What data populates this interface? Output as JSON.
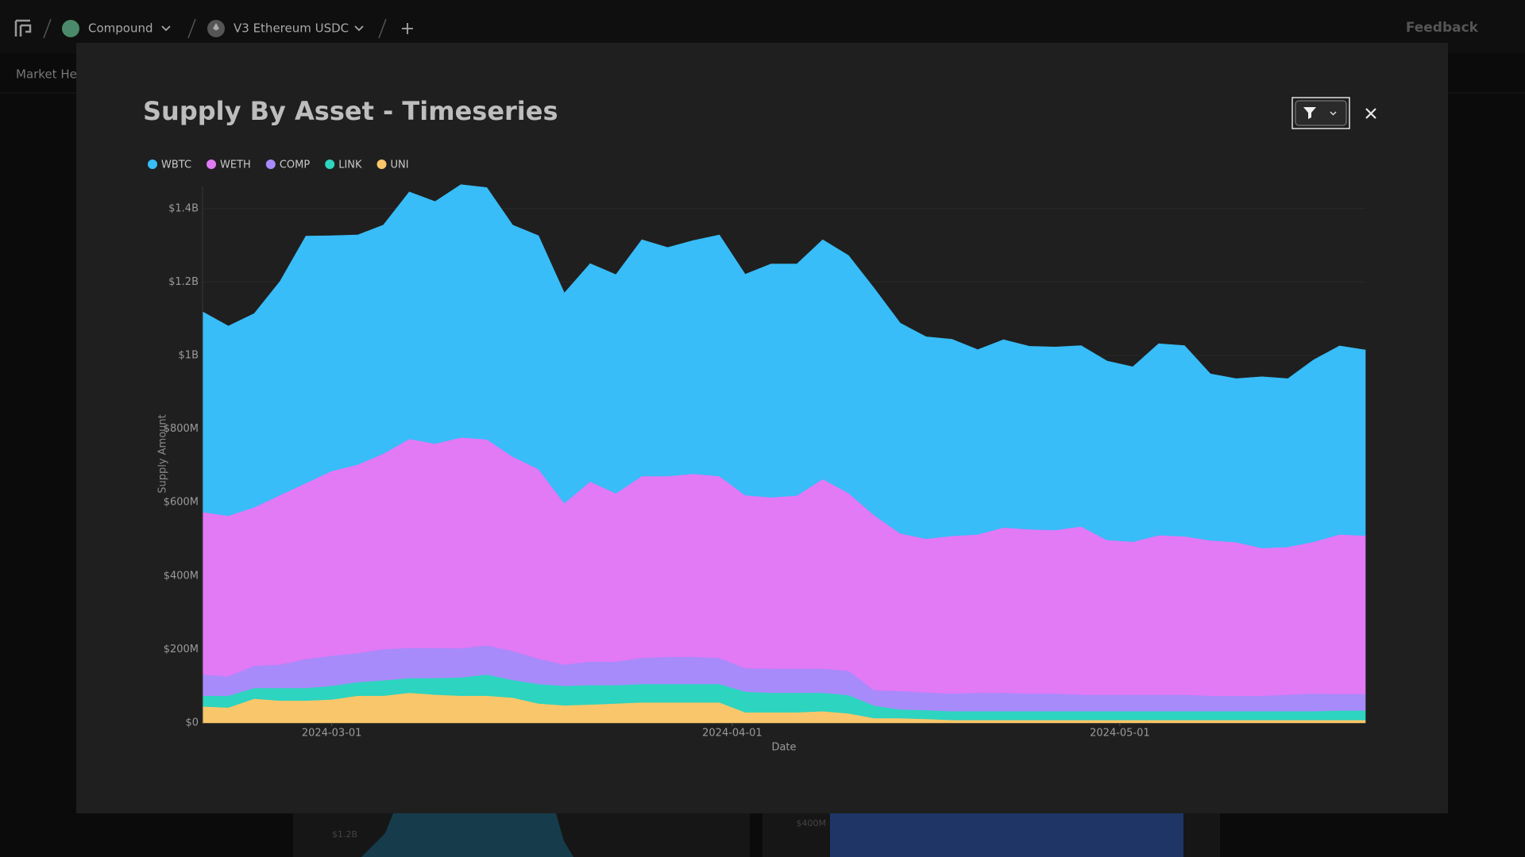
{
  "nav": {
    "crumbs": [
      "Compound",
      "V3 Ethereum USDC"
    ],
    "feedback": "Feedback"
  },
  "tab": "Market Hea",
  "background_labels": [
    "$1.2B",
    "$400M"
  ],
  "chart_data": {
    "type": "area",
    "stacked": true,
    "title": "Supply By Asset - Timeseries",
    "x_label": "Date",
    "y_label": "Supply Amount",
    "x": [
      "2024-02-20",
      "2024-02-22",
      "2024-02-24",
      "2024-02-26",
      "2024-02-28",
      "2024-03-01",
      "2024-03-03",
      "2024-03-05",
      "2024-03-07",
      "2024-03-09",
      "2024-03-11",
      "2024-03-13",
      "2024-03-15",
      "2024-03-17",
      "2024-03-19",
      "2024-03-21",
      "2024-03-23",
      "2024-03-25",
      "2024-03-27",
      "2024-03-29",
      "2024-03-31",
      "2024-04-02",
      "2024-04-04",
      "2024-04-06",
      "2024-04-08",
      "2024-04-10",
      "2024-04-12",
      "2024-04-14",
      "2024-04-16",
      "2024-04-18",
      "2024-04-20",
      "2024-04-22",
      "2024-04-24",
      "2024-04-26",
      "2024-04-28",
      "2024-04-30",
      "2024-05-02",
      "2024-05-04",
      "2024-05-06",
      "2024-05-08",
      "2024-05-10",
      "2024-05-12",
      "2024-05-14",
      "2024-05-16",
      "2024-05-18",
      "2024-05-20"
    ],
    "xlim": [
      "2024-02-20",
      "2024-05-20"
    ],
    "xticks": [
      "2024-03-01",
      "2024-04-01",
      "2024-05-01"
    ],
    "ylim": [
      0,
      1460000000
    ],
    "yticks": [
      {
        "value": 0,
        "label": "$0"
      },
      {
        "value": 200000000,
        "label": "$200M"
      },
      {
        "value": 400000000,
        "label": "$400M"
      },
      {
        "value": 600000000,
        "label": "$600M"
      },
      {
        "value": 800000000,
        "label": "$800M"
      },
      {
        "value": 1000000000,
        "label": "$1B"
      },
      {
        "value": 1200000000,
        "label": "$1.2B"
      },
      {
        "value": 1400000000,
        "label": "$1.4B"
      }
    ],
    "grid": true,
    "legend": "top-left",
    "series": [
      {
        "name": "WBTC",
        "color": "#38bdf8",
        "values": [
          545000000,
          516000000,
          527000000,
          582000000,
          672000000,
          640000000,
          625000000,
          622000000,
          672000000,
          659000000,
          688000000,
          685000000,
          630000000,
          635000000,
          572000000,
          593000000,
          595000000,
          643000000,
          622000000,
          635000000,
          656000000,
          601000000,
          635000000,
          630000000,
          651000000,
          646000000,
          617000000,
          572000000,
          550000000,
          535000000,
          503000000,
          511000000,
          498000000,
          498000000,
          492000000,
          487000000,
          476000000,
          521000000,
          519000000,
          453000000,
          445000000,
          466000000,
          458000000,
          495000000,
          513000000,
          505000000
        ]
      },
      {
        "name": "WETH",
        "color": "#e279f5",
        "values": [
          442000000,
          437000000,
          431000000,
          461000000,
          479000000,
          503000000,
          513000000,
          532000000,
          569000000,
          556000000,
          574000000,
          561000000,
          529000000,
          516000000,
          439000000,
          490000000,
          458000000,
          495000000,
          492000000,
          498000000,
          495000000,
          471000000,
          466000000,
          471000000,
          516000000,
          484000000,
          476000000,
          429000000,
          418000000,
          429000000,
          431000000,
          450000000,
          447000000,
          445000000,
          458000000,
          421000000,
          416000000,
          434000000,
          431000000,
          423000000,
          418000000,
          402000000,
          402000000,
          413000000,
          434000000,
          431000000
        ]
      },
      {
        "name": "COMP",
        "color": "#a78bfa",
        "values": [
          58000000,
          53000000,
          61000000,
          64000000,
          79000000,
          82000000,
          79000000,
          85000000,
          82000000,
          82000000,
          79000000,
          79000000,
          79000000,
          69000000,
          58000000,
          64000000,
          64000000,
          71000000,
          74000000,
          74000000,
          71000000,
          64000000,
          66000000,
          66000000,
          66000000,
          66000000,
          42000000,
          50000000,
          48000000,
          48000000,
          50000000,
          50000000,
          48000000,
          48000000,
          45000000,
          45000000,
          45000000,
          45000000,
          45000000,
          42000000,
          42000000,
          42000000,
          45000000,
          48000000,
          45000000,
          45000000
        ]
      },
      {
        "name": "LINK",
        "color": "#2dd4bf",
        "values": [
          29000000,
          32000000,
          29000000,
          34000000,
          34000000,
          37000000,
          37000000,
          42000000,
          40000000,
          45000000,
          50000000,
          58000000,
          48000000,
          53000000,
          53000000,
          53000000,
          50000000,
          50000000,
          50000000,
          50000000,
          50000000,
          56000000,
          53000000,
          53000000,
          50000000,
          50000000,
          34000000,
          24000000,
          24000000,
          24000000,
          24000000,
          24000000,
          24000000,
          24000000,
          24000000,
          24000000,
          24000000,
          24000000,
          24000000,
          24000000,
          24000000,
          24000000,
          24000000,
          24000000,
          26000000,
          26000000
        ]
      },
      {
        "name": "UNI",
        "color": "#f9c66b",
        "values": [
          45000000,
          42000000,
          66000000,
          61000000,
          61000000,
          64000000,
          74000000,
          74000000,
          82000000,
          77000000,
          74000000,
          74000000,
          69000000,
          53000000,
          48000000,
          50000000,
          53000000,
          56000000,
          56000000,
          56000000,
          56000000,
          29000000,
          29000000,
          29000000,
          32000000,
          26000000,
          13000000,
          13000000,
          11000000,
          8000000,
          8000000,
          8000000,
          8000000,
          8000000,
          8000000,
          8000000,
          8000000,
          8000000,
          8000000,
          8000000,
          8000000,
          8000000,
          8000000,
          8000000,
          8000000,
          8000000
        ]
      }
    ]
  }
}
